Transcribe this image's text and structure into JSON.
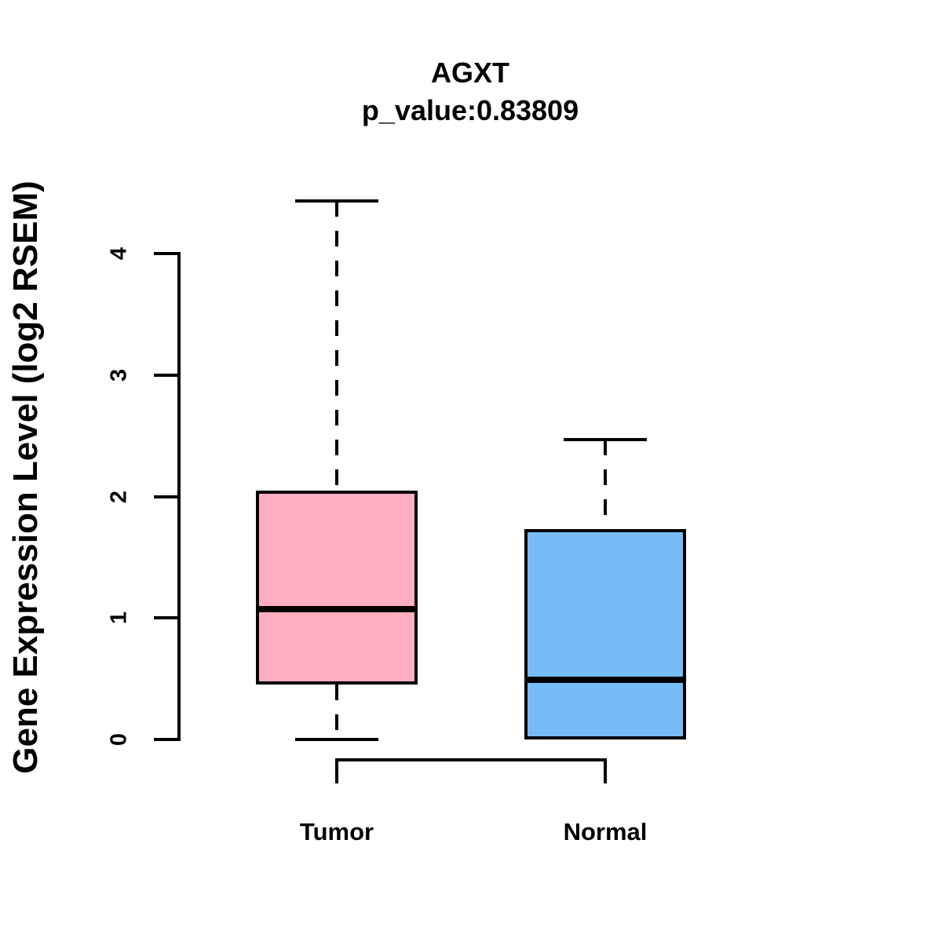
{
  "chart_data": {
    "type": "boxplot",
    "title": "AGXT",
    "subtitle": "p_value:0.83809",
    "ylabel": "Gene Expression Level (log2 RSEM)",
    "xlabel": "",
    "categories": [
      "Tumor",
      "Normal"
    ],
    "yticks": [
      "0",
      "1",
      "2",
      "3",
      "4"
    ],
    "ylim": [
      0,
      4.5
    ],
    "grid": false,
    "legend": false,
    "series": [
      {
        "name": "Tumor",
        "whisker_low": 0,
        "q1": 0.45,
        "median": 1.07,
        "q3": 2.05,
        "whisker_high": 4.43,
        "fill": "#FFAFC1"
      },
      {
        "name": "Normal",
        "whisker_low": 0,
        "q1": 0,
        "median": 0.49,
        "q3": 1.73,
        "whisker_high": 2.47,
        "fill": "#76BDF7"
      }
    ],
    "colors": {
      "tumor_fill": "#FFAFC1",
      "normal_fill": "#76BDF7",
      "line": "#000000",
      "background": "#FFFFFF"
    }
  }
}
